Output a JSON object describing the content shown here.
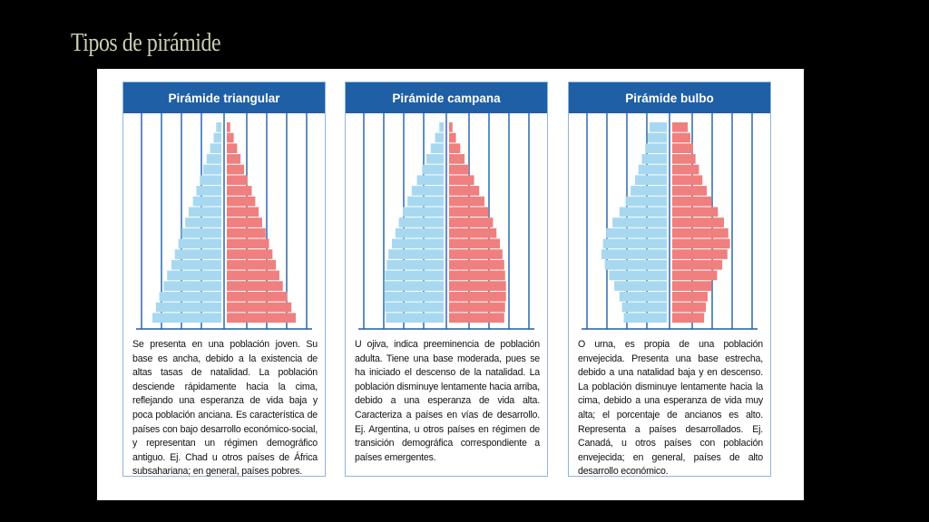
{
  "slide": {
    "title": "Tipos de pirámide"
  },
  "colors": {
    "header_bg": "#1f5fa5",
    "male_bar": "#a8d8f0",
    "female_bar": "#f07f7f",
    "gridline": "#1f5fa5"
  },
  "panels": [
    {
      "title": "Pirámide triangular",
      "text": "Se presenta en una población joven. Su base es ancha, debido a la existencia de altas tasas de natalidad. La población desciende rápidamente hacia la cima, reflejando una esperanza de vida baja y poca población anciana. Es característica de países con bajo desarrollo económico-social, y representan un régimen demográfico antiguo. Ej. Chad u otros países de África subsahariana; en general, países pobres.",
      "male": [
        0.06,
        0.09,
        0.13,
        0.17,
        0.21,
        0.25,
        0.29,
        0.33,
        0.38,
        0.42,
        0.46,
        0.5,
        0.54,
        0.58,
        0.63,
        0.67,
        0.72,
        0.76,
        0.8
      ],
      "female": [
        0.04,
        0.08,
        0.12,
        0.16,
        0.2,
        0.24,
        0.29,
        0.33,
        0.37,
        0.41,
        0.45,
        0.49,
        0.53,
        0.57,
        0.61,
        0.65,
        0.7,
        0.75,
        0.8
      ]
    },
    {
      "title": "Pirámide campana",
      "text": "U ojiva, indica preeminencia de población adulta. Tiene una base moderada, pues se ha iniciado el descenso de la natalidad. La población disminuye lentamente hacia arriba, debido a una esperanza de vida alta. Caracteriza a países en vías de desarrollo. Ej. Argentina, u otros países en régimen de transición demográfica correspondiente a países emergentes.",
      "male": [
        0.05,
        0.1,
        0.15,
        0.2,
        0.25,
        0.31,
        0.37,
        0.42,
        0.47,
        0.52,
        0.56,
        0.6,
        0.64,
        0.66,
        0.68,
        0.69,
        0.69,
        0.68,
        0.67
      ],
      "female": [
        0.04,
        0.08,
        0.13,
        0.18,
        0.23,
        0.29,
        0.35,
        0.41,
        0.46,
        0.51,
        0.55,
        0.59,
        0.62,
        0.64,
        0.65,
        0.66,
        0.66,
        0.65,
        0.64
      ]
    },
    {
      "title": "Pirámide bulbo",
      "text": "O urna, es propia de una población envejecida. Presenta una base estrecha, debido a una natalidad baja y en descenso. La población disminuye lentamente hacia la cima, debido a una esperanza de vida muy alta; el porcentaje de ancianos es alto. Representa a países desarrollados. Ej. Canadá, u otros países con población envejecida; en general, países de alto desarrollo económico.",
      "male": [
        0.2,
        0.22,
        0.25,
        0.29,
        0.33,
        0.37,
        0.42,
        0.48,
        0.55,
        0.63,
        0.7,
        0.74,
        0.76,
        0.72,
        0.67,
        0.61,
        0.55,
        0.52,
        0.5
      ],
      "female": [
        0.18,
        0.21,
        0.24,
        0.27,
        0.31,
        0.35,
        0.4,
        0.46,
        0.53,
        0.6,
        0.65,
        0.67,
        0.64,
        0.58,
        0.52,
        0.46,
        0.41,
        0.39,
        0.37
      ]
    }
  ]
}
